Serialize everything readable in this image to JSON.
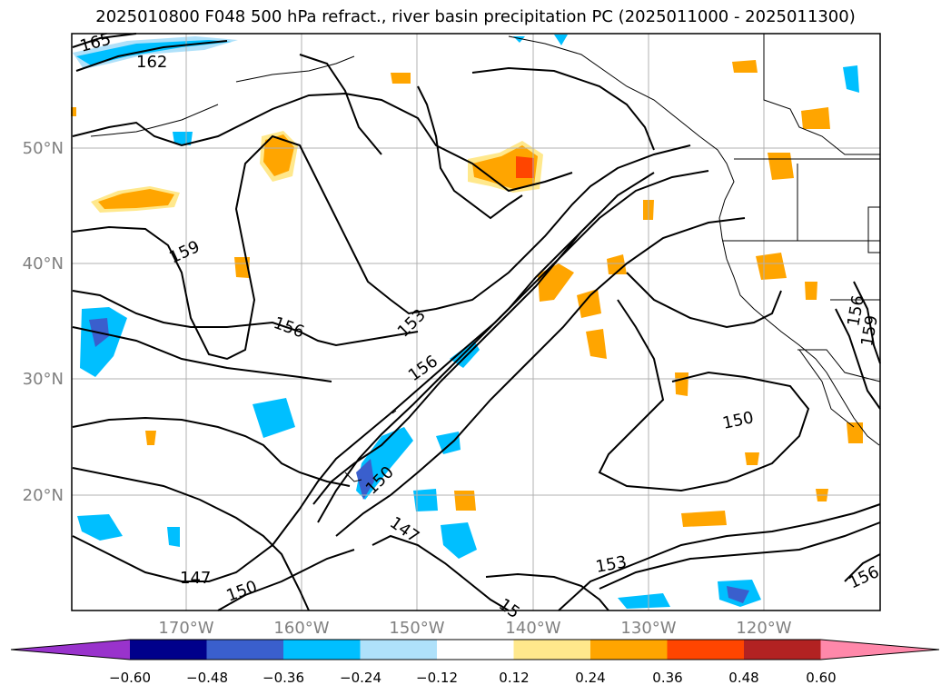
{
  "title": "2025010800 F048 500 hPa refract., river basin precipitation PC (2025011000 - 2025011300)",
  "map": {
    "lon_labels": [
      "170°W",
      "160°W",
      "150°W",
      "140°W",
      "130°W",
      "120°W"
    ],
    "lat_labels": [
      "50°N",
      "40°N",
      "30°N",
      "20°N"
    ],
    "contour_labels": [
      "165",
      "162",
      "159",
      "156",
      "153",
      "156",
      "150",
      "147",
      "147",
      "150",
      "150",
      "153",
      "15",
      "156",
      "156",
      "159"
    ]
  },
  "colorbar": {
    "ticks": [
      "−0.60",
      "−0.48",
      "−0.36",
      "−0.24",
      "−0.12",
      "0.12",
      "0.24",
      "0.36",
      "0.48",
      "0.60"
    ],
    "colors": [
      "#9933cc",
      "#00008b",
      "#3a5fcd",
      "#00bfff",
      "#afe1fa",
      "#ffffff",
      "#ffe88c",
      "#ffa500",
      "#ff4500",
      "#b22222",
      "#ff88aa"
    ]
  }
}
